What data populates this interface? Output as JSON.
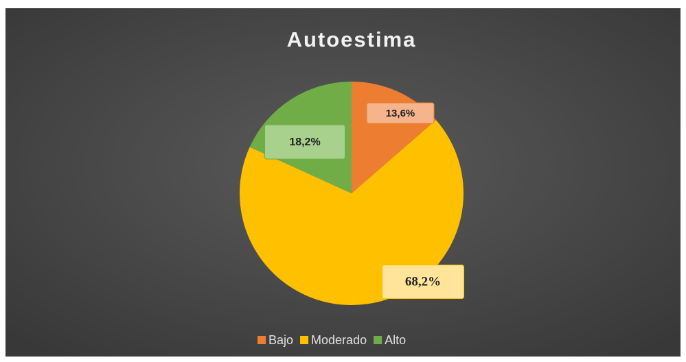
{
  "chart_data": {
    "type": "pie",
    "title": "Autoestima",
    "categories": [
      "Bajo",
      "Moderado",
      "Alto"
    ],
    "values": [
      13.6,
      68.2,
      18.2
    ],
    "value_labels": [
      "13,6%",
      "68,2%",
      "18,2%"
    ],
    "colors": [
      "#ed7d31",
      "#ffc000",
      "#70ad47"
    ],
    "legend": "bottom"
  }
}
